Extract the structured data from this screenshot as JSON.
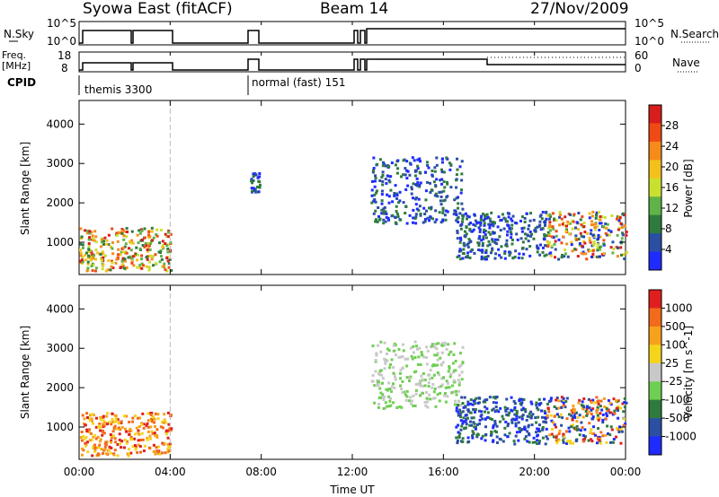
{
  "header": {
    "radar": "Syowa East (fitACF)",
    "beam": "Beam 14",
    "date": "27/Nov/2009"
  },
  "param_panels": {
    "nsky_label": "N.Sky",
    "nsky_ticks": [
      "10^5",
      "10^0"
    ],
    "nsearch_label": "N.Search",
    "nsearch_ticks": [
      "10^5",
      "10^0"
    ],
    "freq_label_1": "Freq.",
    "freq_label_2": "[MHz]",
    "freq_ticks": [
      "18",
      "8"
    ],
    "nave_label": "Nave",
    "nave_ticks": [
      "60",
      "0"
    ],
    "cpid_label": "CPID",
    "cpid_modes": [
      "themis 3300",
      "normal (fast) 151"
    ]
  },
  "chart_data": [
    {
      "type": "heatmap",
      "title": "",
      "ylabel": "Slant Range [km]",
      "xlabel": "",
      "ylim": [
        180,
        4600
      ],
      "yticks": [
        "1000",
        "2000",
        "3000",
        "4000"
      ],
      "xlim": [
        0,
        24
      ],
      "colorbar": {
        "label": "Power [dB]",
        "ticks": [
          "4",
          "8",
          "12",
          "16",
          "20",
          "24",
          "28"
        ],
        "colors": [
          "#1f2bff",
          "#2a4fa3",
          "#2f7b3d",
          "#5fb347",
          "#c9e02f",
          "#f3c11c",
          "#f58b1a",
          "#f04a14",
          "#d81d1d"
        ]
      },
      "features": [
        {
          "t": [
            0.0,
            4.0
          ],
          "range": [
            300,
            1400
          ],
          "level": "mixed high power"
        },
        {
          "t": [
            7.5,
            7.9
          ],
          "range": [
            2300,
            2800
          ],
          "level": "low"
        },
        {
          "t": [
            12.8,
            16.8
          ],
          "range": [
            1500,
            3200
          ],
          "level": "low"
        },
        {
          "t": [
            16.5,
            24.0
          ],
          "range": [
            600,
            1800
          ],
          "level": "low to high"
        }
      ]
    },
    {
      "type": "heatmap",
      "title": "",
      "ylabel": "Slant Range [km]",
      "xlabel": "Time UT",
      "ylim": [
        180,
        4600
      ],
      "yticks": [
        "1000",
        "2000",
        "3000",
        "4000"
      ],
      "xticks": [
        "00:00",
        "04:00",
        "08:00",
        "12:00",
        "16:00",
        "20:00",
        "00:00"
      ],
      "xlim": [
        0,
        24
      ],
      "colorbar": {
        "label": "Velocity [m s^-1]",
        "ticks": [
          "1000",
          "500",
          "100",
          "25",
          "-25",
          "-100",
          "-500",
          "-1000"
        ],
        "colors": [
          "#1f2bff",
          "#2a4fa3",
          "#2f7b3d",
          "#6fcf52",
          "#c8c8c8",
          "#f5d41c",
          "#f6a21a",
          "#f26a1b",
          "#e11e1e"
        ]
      },
      "features": [
        {
          "t": [
            0.0,
            4.0
          ],
          "range": [
            300,
            1400
          ],
          "level": "negative"
        },
        {
          "t": [
            12.8,
            16.8
          ],
          "range": [
            1500,
            3200
          ],
          "level": "near zero"
        },
        {
          "t": [
            16.5,
            24.0
          ],
          "range": [
            600,
            1800
          ],
          "level": "positive and negative"
        }
      ]
    }
  ]
}
